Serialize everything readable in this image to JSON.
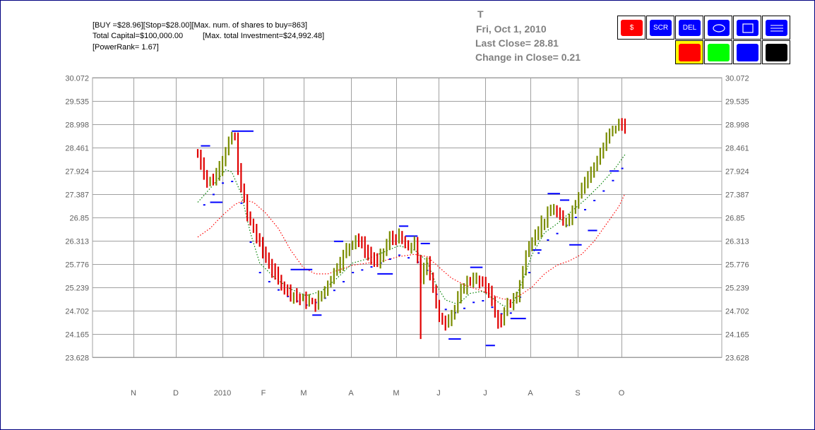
{
  "info": {
    "line1": "[BUY =$28.96][Stop=$28.00][Max. num. of shares to buy=863]",
    "line2a": "Total Capital=$100,000.00",
    "line2b": "[Max. total Investment=$24,992.48]",
    "line3": "[PowerRank= 1.67]"
  },
  "header": {
    "symbol": "T",
    "date": "Fri, Oct 1, 2010",
    "last_close": "Last Close=  28.81",
    "change": "Change in Close=  0.21"
  },
  "toolbar": {
    "buttons": [
      {
        "label": "$",
        "color": "#ff0000",
        "icon": "dollar-icon"
      },
      {
        "label": "SCR",
        "color": "#0000ff",
        "icon": "scr-icon"
      },
      {
        "label": "DEL",
        "color": "#0000ff",
        "icon": "del-icon"
      },
      {
        "label": "",
        "color": "#0000ff",
        "icon": "ellipse-icon"
      },
      {
        "label": "",
        "color": "#0000ff",
        "icon": "rectangle-icon"
      },
      {
        "label": "",
        "color": "#0000ff",
        "icon": "menu-lines-icon"
      }
    ],
    "colors": [
      {
        "name": "red",
        "color": "#ff0000",
        "selected": true
      },
      {
        "name": "green",
        "color": "#00ff00",
        "selected": false
      },
      {
        "name": "blue",
        "color": "#0000ff",
        "selected": false
      },
      {
        "name": "black",
        "color": "#000000",
        "selected": false
      }
    ]
  },
  "chart_data": {
    "type": "ohlc",
    "y_ticks": [
      "30.072",
      "29.535",
      "28.998",
      "28.461",
      "27.924",
      "27.387",
      "26.85",
      "26.313",
      "25.776",
      "25.239",
      "24.702",
      "24.165",
      "23.628"
    ],
    "ylim": [
      23.628,
      30.072
    ],
    "x_labels": [
      "N",
      "D",
      "2010",
      "F",
      "M",
      "A",
      "M",
      "J",
      "J",
      "A",
      "S",
      "O"
    ],
    "grid": true,
    "colors": {
      "up_bars": "#7a8c00",
      "down_bars": "#e00000",
      "fast_ma": "#008000",
      "slow_ma": "#ff0000",
      "stops": "#0000ff",
      "grid": "#a0a0a0"
    },
    "price_waypoints": [
      [
        0,
        28.3
      ],
      [
        3,
        27.7
      ],
      [
        5,
        27.7
      ],
      [
        8,
        28.2
      ],
      [
        10,
        28.6
      ],
      [
        12,
        28.7
      ],
      [
        13,
        27.9
      ],
      [
        16,
        26.9
      ],
      [
        19,
        26.4
      ],
      [
        22,
        25.9
      ],
      [
        26,
        25.4
      ],
      [
        30,
        25.1
      ],
      [
        34,
        24.95
      ],
      [
        38,
        24.85
      ],
      [
        41,
        25.2
      ],
      [
        44,
        25.6
      ],
      [
        48,
        26.1
      ],
      [
        51,
        26.4
      ],
      [
        55,
        26.0
      ],
      [
        58,
        25.8
      ],
      [
        62,
        26.35
      ],
      [
        65,
        26.4
      ],
      [
        68,
        26.1
      ],
      [
        70,
        26.3
      ],
      [
        72,
        25.4
      ],
      [
        74,
        25.9
      ],
      [
        76,
        25.2
      ],
      [
        78,
        24.5
      ],
      [
        80,
        24.45
      ],
      [
        83,
        24.75
      ],
      [
        86,
        25.3
      ],
      [
        89,
        25.45
      ],
      [
        92,
        25.3
      ],
      [
        94,
        25.2
      ],
      [
        96,
        24.6
      ],
      [
        98,
        24.4
      ],
      [
        100,
        24.85
      ],
      [
        103,
        25.0
      ],
      [
        106,
        26.0
      ],
      [
        109,
        26.5
      ],
      [
        112,
        26.8
      ],
      [
        115,
        27.05
      ],
      [
        118,
        26.7
      ],
      [
        121,
        27.0
      ],
      [
        124,
        27.6
      ],
      [
        127,
        27.9
      ],
      [
        130,
        28.3
      ],
      [
        133,
        28.8
      ],
      [
        136,
        29.0
      ],
      [
        138,
        28.95
      ]
    ],
    "bar_count": 139,
    "fast_ma_waypoints": [
      [
        0,
        27.2
      ],
      [
        5,
        27.6
      ],
      [
        9,
        27.95
      ],
      [
        11,
        27.9
      ],
      [
        14,
        27.4
      ],
      [
        17,
        26.5
      ],
      [
        20,
        25.8
      ],
      [
        25,
        25.45
      ],
      [
        30,
        25.2
      ],
      [
        35,
        25.05
      ],
      [
        40,
        25.15
      ],
      [
        45,
        25.45
      ],
      [
        50,
        25.8
      ],
      [
        55,
        25.9
      ],
      [
        60,
        26.05
      ],
      [
        65,
        26.2
      ],
      [
        70,
        26.1
      ],
      [
        74,
        25.85
      ],
      [
        77,
        25.3
      ],
      [
        80,
        24.95
      ],
      [
        84,
        24.85
      ],
      [
        88,
        25.1
      ],
      [
        92,
        25.15
      ],
      [
        96,
        24.95
      ],
      [
        99,
        24.8
      ],
      [
        102,
        24.9
      ],
      [
        105,
        25.4
      ],
      [
        108,
        26.0
      ],
      [
        112,
        26.5
      ],
      [
        116,
        26.7
      ],
      [
        120,
        26.95
      ],
      [
        125,
        27.25
      ],
      [
        130,
        27.6
      ],
      [
        135,
        28.0
      ],
      [
        138,
        28.3
      ]
    ],
    "slow_ma_waypoints": [
      [
        0,
        26.4
      ],
      [
        4,
        26.6
      ],
      [
        8,
        26.9
      ],
      [
        12,
        27.15
      ],
      [
        15,
        27.25
      ],
      [
        18,
        27.2
      ],
      [
        22,
        26.95
      ],
      [
        26,
        26.6
      ],
      [
        30,
        26.1
      ],
      [
        34,
        25.7
      ],
      [
        38,
        25.55
      ],
      [
        42,
        25.55
      ],
      [
        46,
        25.65
      ],
      [
        50,
        25.75
      ],
      [
        55,
        25.8
      ],
      [
        60,
        25.85
      ],
      [
        65,
        25.95
      ],
      [
        70,
        26.0
      ],
      [
        74,
        25.95
      ],
      [
        78,
        25.7
      ],
      [
        82,
        25.45
      ],
      [
        86,
        25.3
      ],
      [
        90,
        25.2
      ],
      [
        94,
        25.1
      ],
      [
        98,
        24.98
      ],
      [
        101,
        24.95
      ],
      [
        104,
        25.05
      ],
      [
        108,
        25.25
      ],
      [
        112,
        25.55
      ],
      [
        116,
        25.75
      ],
      [
        120,
        25.85
      ],
      [
        124,
        26.0
      ],
      [
        128,
        26.3
      ],
      [
        132,
        26.7
      ],
      [
        136,
        27.1
      ],
      [
        138,
        27.4
      ]
    ],
    "stop_segments": [
      [
        1,
        28.5,
        3
      ],
      [
        4,
        27.2,
        4
      ],
      [
        11,
        28.84,
        7
      ],
      [
        30,
        25.65,
        7
      ],
      [
        37,
        24.6,
        3
      ],
      [
        44,
        26.3,
        3
      ],
      [
        58,
        25.55,
        5
      ],
      [
        65,
        26.65,
        3
      ],
      [
        67,
        26.42,
        4
      ],
      [
        72,
        26.25,
        3
      ],
      [
        81,
        24.05,
        4
      ],
      [
        88,
        25.7,
        4
      ],
      [
        93,
        23.9,
        3
      ],
      [
        101,
        24.52,
        5
      ],
      [
        113,
        27.4,
        4
      ],
      [
        108,
        26.1,
        3
      ],
      [
        117,
        27.25,
        3
      ],
      [
        120,
        26.22,
        4
      ],
      [
        126,
        26.55,
        3
      ],
      [
        133,
        27.92,
        3
      ]
    ]
  }
}
